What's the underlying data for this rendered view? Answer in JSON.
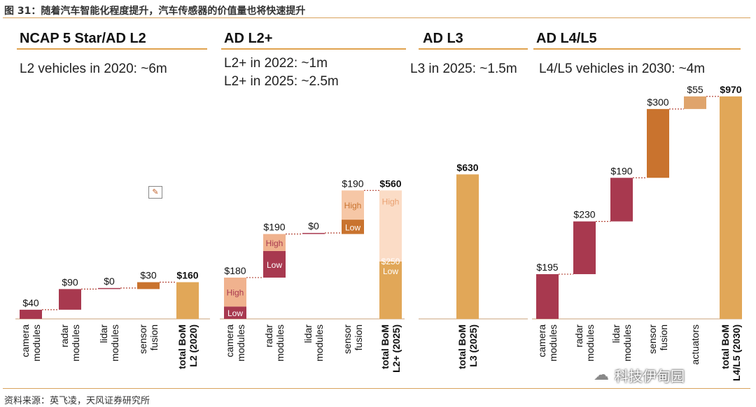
{
  "figure": {
    "title": "图 31：随着汽车智能化程度提升，汽车传感器的价值量也将快速提升",
    "source": "资料来源：英飞凌，天风证券研究所",
    "watermark": "科技伊甸园",
    "watermark_icon": "wechat-icon"
  },
  "panels": [
    {
      "title": "NCAP 5 Star/AD L2",
      "subtitle_lines": [
        "L2 vehicles in 2020: ~6m"
      ]
    },
    {
      "title": "AD L2+",
      "subtitle_lines": [
        "L2+ in 2022: ~1m",
        "L2+ in 2025: ~2.5m"
      ]
    },
    {
      "title": "AD L3",
      "subtitle_lines": [
        "L3 in 2025: ~1.5m"
      ]
    },
    {
      "title": "AD L4/L5",
      "subtitle_lines": [
        "L4/L5 vehicles in 2030: ~4m"
      ]
    }
  ],
  "colors": {
    "camera": "#a8394f",
    "radar": "#a8394f",
    "lidar": "#a8394f",
    "sensor": "#c9732e",
    "actuators": "#dfa46c",
    "total": "#e1a758",
    "high": "#f0b28e",
    "low": "#a8394f",
    "high_l2plus": "#f6c7a6",
    "low_l2plus": "#c9732e",
    "total_high": "#fbdcc6",
    "accent_rule": "#e0a24e",
    "connector": "#b5483a",
    "baseline": "#c9a27a"
  },
  "chart_data": [
    {
      "type": "bar",
      "subtype": "waterfall",
      "title": "NCAP 5 Star/AD L2",
      "unit": "USD",
      "categories": [
        "camera modules",
        "radar modules",
        "lidar modules",
        "sensor fusion",
        "total BoM L2 (2020)"
      ],
      "values": [
        40,
        90,
        0,
        30,
        160
      ],
      "labels": [
        "$40",
        "$90",
        "$0",
        "$30",
        "$160"
      ],
      "total_index": 4
    },
    {
      "type": "bar",
      "subtype": "waterfall",
      "title": "AD L2+",
      "unit": "USD",
      "categories": [
        "camera modules",
        "radar modules",
        "lidar modules",
        "sensor fusion",
        "total BoM L2+ (2025)"
      ],
      "values": [
        180,
        190,
        0,
        190,
        560
      ],
      "labels": [
        "$180",
        "$190",
        "$0",
        "$190",
        "$560"
      ],
      "total_index": 4,
      "low_values": [
        null,
        null,
        null,
        null,
        250
      ],
      "segment_labels": {
        "high": "High",
        "low": "Low",
        "total_low": "$250 Low"
      }
    },
    {
      "type": "bar",
      "title": "AD L3",
      "unit": "USD",
      "categories": [
        "total BoM L3 (2025)"
      ],
      "values": [
        630
      ],
      "labels": [
        "$630"
      ],
      "total_index": 0
    },
    {
      "type": "bar",
      "subtype": "waterfall",
      "title": "AD L4/L5",
      "unit": "USD",
      "categories": [
        "camera modules",
        "radar modules",
        "lidar modules",
        "sensor fusion",
        "actuators",
        "total BoM L4/L5 (2030)"
      ],
      "values": [
        195,
        230,
        190,
        300,
        55,
        970
      ],
      "labels": [
        "$195",
        "$230",
        "$190",
        "$300",
        "$55",
        "$970"
      ],
      "total_index": 5
    }
  ]
}
